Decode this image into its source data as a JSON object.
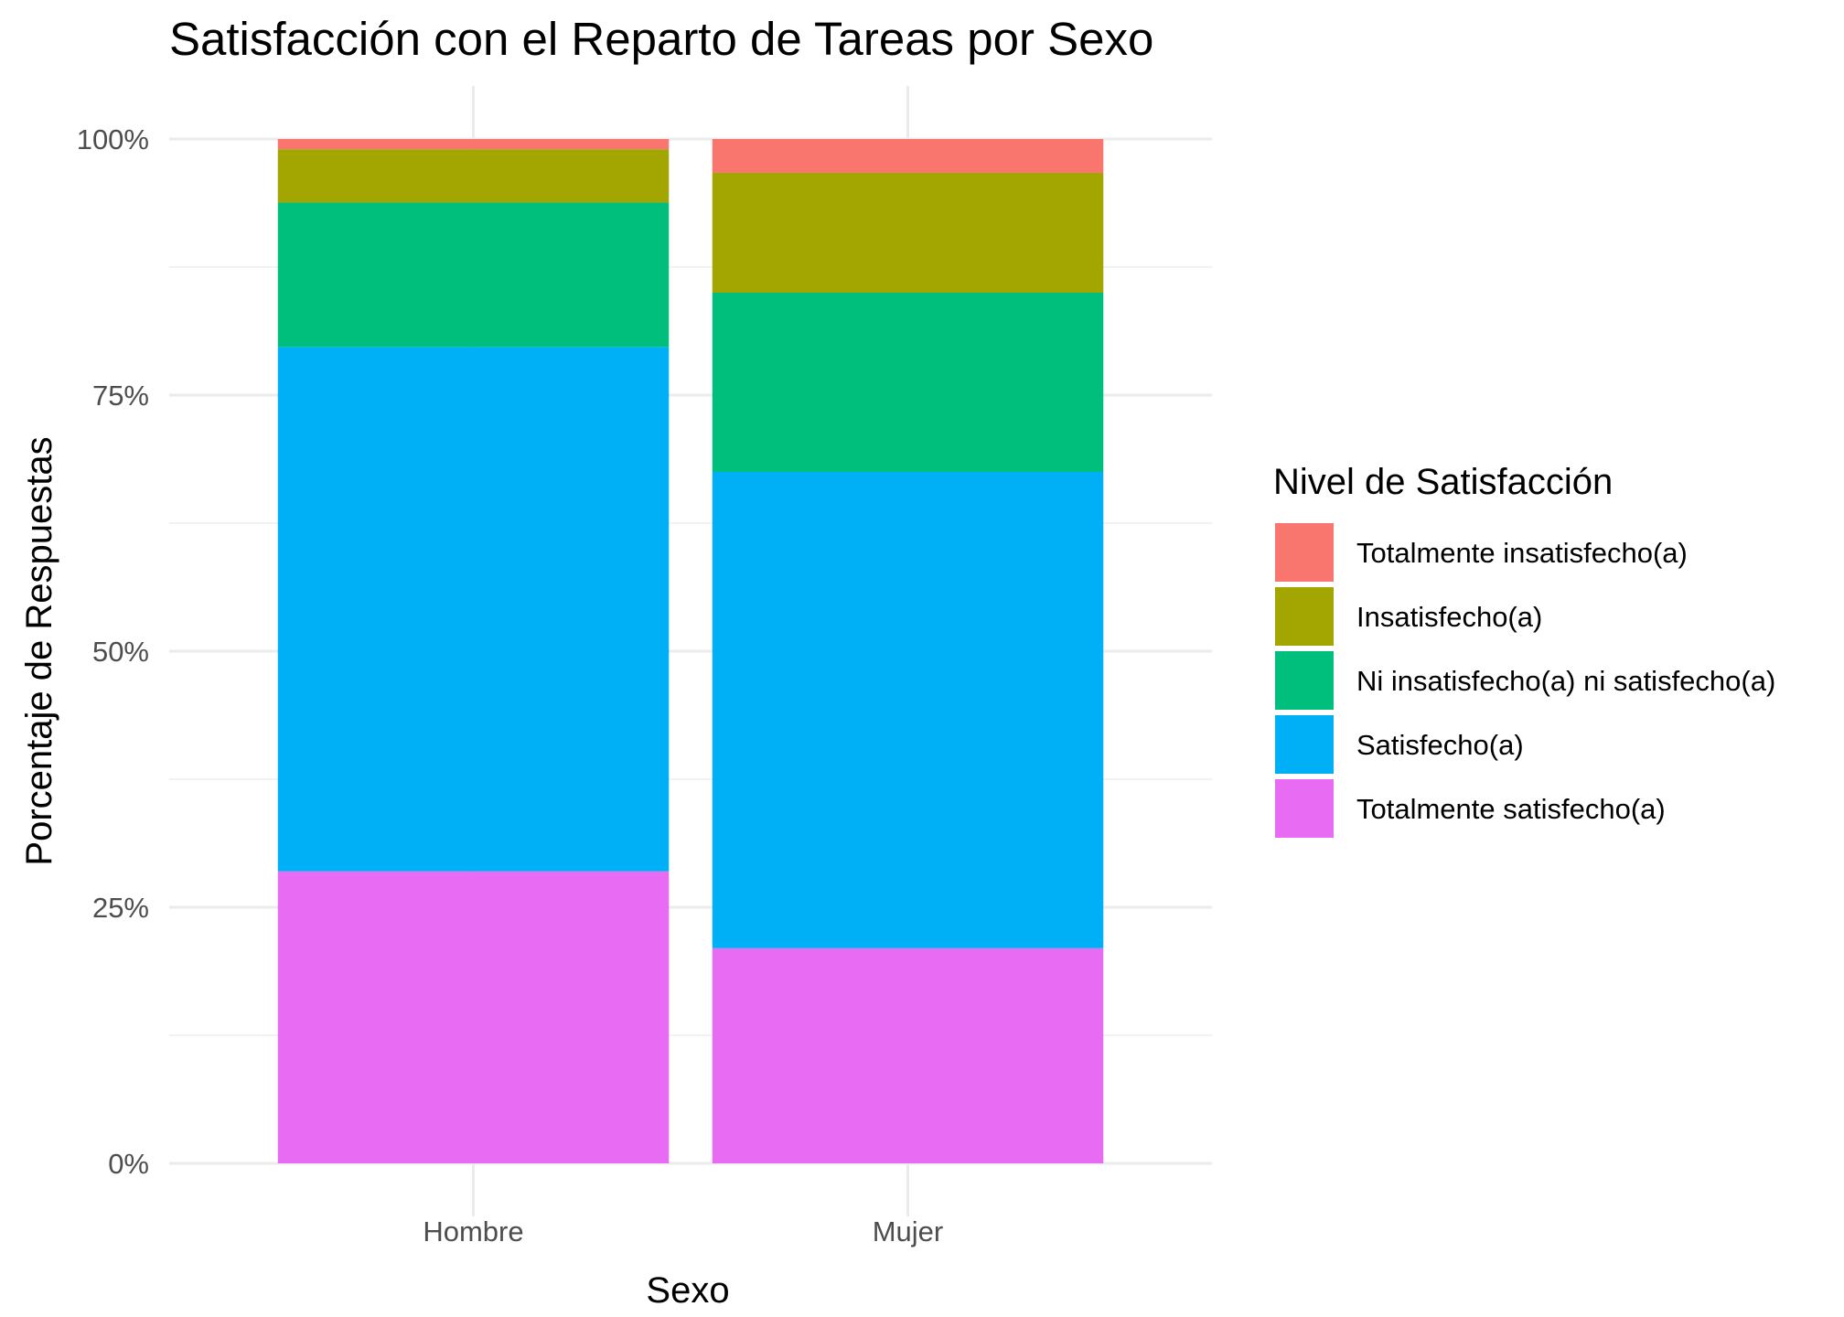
{
  "chart_data": {
    "type": "bar",
    "stacked": true,
    "title": "Satisfacción con el Reparto de Tareas por Sexo",
    "xlabel": "Sexo",
    "ylabel": "Porcentaje de Respuestas",
    "ylim": [
      0,
      100
    ],
    "yticks": [
      "0%",
      "25%",
      "50%",
      "75%",
      "100%"
    ],
    "ytick_values": [
      0,
      25,
      50,
      75,
      100
    ],
    "categories": [
      "Hombre",
      "Mujer"
    ],
    "legend_title": "Nivel de Satisfacción",
    "legend_position": "right",
    "grid": true,
    "series": [
      {
        "name": "Totalmente satisfecho(a)",
        "color": "#E76BF3",
        "values": [
          28.5,
          21.0
        ]
      },
      {
        "name": "Satisfecho(a)",
        "color": "#00B0F6",
        "values": [
          51.2,
          46.5
        ]
      },
      {
        "name": "Ni insatisfecho(a) ni satisfecho(a)",
        "color": "#00BF7D",
        "values": [
          14.1,
          17.5
        ]
      },
      {
        "name": "Insatisfecho(a)",
        "color": "#A3A500",
        "values": [
          5.2,
          11.7
        ]
      },
      {
        "name": "Totalmente insatisfecho(a)",
        "color": "#F8766D",
        "values": [
          1.0,
          3.3
        ]
      }
    ],
    "legend_order": [
      "Totalmente insatisfecho(a)",
      "Insatisfecho(a)",
      "Ni insatisfecho(a) ni satisfecho(a)",
      "Satisfecho(a)",
      "Totalmente satisfecho(a)"
    ]
  }
}
